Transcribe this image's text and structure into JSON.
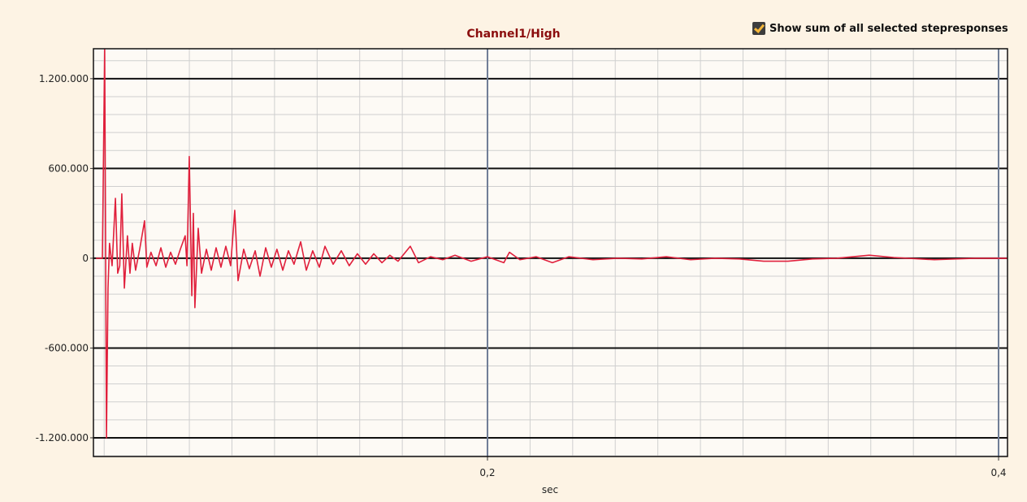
{
  "chart_data": {
    "type": "line",
    "title": "Channel1/High",
    "x_label": "sec",
    "checkbox": {
      "label": "Show sum of all selected stepresponses",
      "checked": true
    },
    "x": [
      0.0468,
      0.0493,
      0.0502,
      0.0505,
      0.0509,
      0.0515,
      0.0521,
      0.0531,
      0.0544,
      0.0553,
      0.0561,
      0.0569,
      0.0579,
      0.0591,
      0.0601,
      0.061,
      0.0623,
      0.0639,
      0.0658,
      0.0667,
      0.0683,
      0.0703,
      0.0722,
      0.0741,
      0.076,
      0.0779,
      0.0798,
      0.0817,
      0.0824,
      0.0833,
      0.0843,
      0.0849,
      0.0855,
      0.0868,
      0.0881,
      0.09,
      0.0919,
      0.0938,
      0.0957,
      0.0976,
      0.0995,
      0.1011,
      0.1024,
      0.1046,
      0.1068,
      0.1091,
      0.111,
      0.1132,
      0.1154,
      0.1176,
      0.1199,
      0.1221,
      0.1243,
      0.1269,
      0.1291,
      0.1316,
      0.1342,
      0.1364,
      0.1396,
      0.1428,
      0.1459,
      0.1491,
      0.1523,
      0.1555,
      0.1587,
      0.1618,
      0.165,
      0.1698,
      0.173,
      0.1777,
      0.1825,
      0.1873,
      0.1936,
      0.2,
      0.2064,
      0.2086,
      0.2127,
      0.2191,
      0.2254,
      0.2318,
      0.2413,
      0.2509,
      0.2604,
      0.27,
      0.2795,
      0.289,
      0.2986,
      0.3081,
      0.3176,
      0.3272,
      0.3367,
      0.3494,
      0.359,
      0.3749,
      0.3908,
      0.4035
    ],
    "series": [
      {
        "name": "Channel1/High",
        "color": "#e0203c",
        "values": [
          0,
          0,
          1400000,
          300000,
          -1200000,
          -200000,
          100000,
          -50000,
          400000,
          -100000,
          -50000,
          430000,
          -200000,
          150000,
          -100000,
          100000,
          -80000,
          60000,
          250000,
          -60000,
          40000,
          -50000,
          70000,
          -60000,
          40000,
          -40000,
          60000,
          150000,
          -50000,
          680000,
          -250000,
          300000,
          -330000,
          200000,
          -100000,
          60000,
          -80000,
          70000,
          -60000,
          80000,
          -50000,
          320000,
          -150000,
          60000,
          -70000,
          50000,
          -120000,
          70000,
          -60000,
          60000,
          -80000,
          50000,
          -40000,
          110000,
          -80000,
          50000,
          -60000,
          80000,
          -40000,
          50000,
          -50000,
          30000,
          -40000,
          30000,
          -30000,
          20000,
          -20000,
          80000,
          -30000,
          10000,
          -10000,
          20000,
          -20000,
          10000,
          -30000,
          40000,
          -10000,
          10000,
          -30000,
          10000,
          -10000,
          0,
          -5000,
          10000,
          -10000,
          0,
          -5000,
          -20000,
          -20000,
          -5000,
          0,
          20000,
          5000,
          -10000,
          0,
          0
        ]
      }
    ],
    "xlim": [
      0.0458,
      0.4035
    ],
    "ylim": [
      -1325000,
      1400000
    ],
    "xticks": [
      {
        "value": 0.2,
        "label": "0,2"
      },
      {
        "value": 0.4,
        "label": "0,4"
      }
    ],
    "yticks": [
      {
        "value": -1200000,
        "label": "-1.200.000"
      },
      {
        "value": -600000,
        "label": "-600.000"
      },
      0,
      {
        "value": 600000,
        "label": "600.000"
      },
      {
        "value": 1200000,
        "label": "1.200.000"
      }
    ],
    "grid": true
  }
}
